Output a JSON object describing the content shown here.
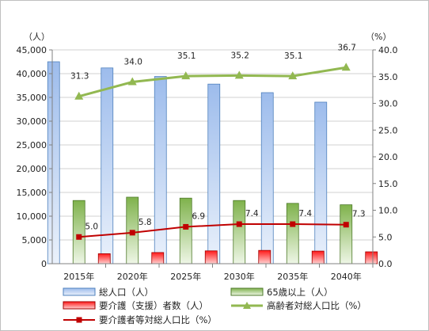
{
  "chart_data": {
    "type": "bar",
    "categories": [
      "2015年",
      "2020年",
      "2025年",
      "2030年",
      "2035年",
      "2040年"
    ],
    "left_axis": {
      "unit_label": "（人）",
      "range": [
        0,
        45000
      ],
      "ticks": [
        "0",
        "5,000",
        "10,000",
        "15,000",
        "20,000",
        "25,000",
        "30,000",
        "35,000",
        "40,000",
        "45,000"
      ]
    },
    "right_axis": {
      "unit_label": "（%）",
      "range": [
        0,
        40
      ],
      "ticks": [
        "0.0",
        "5.0",
        "10.0",
        "15.0",
        "20.0",
        "25.0",
        "30.0",
        "35.0",
        "40.0"
      ]
    },
    "grid": "horizontal",
    "legend_position": "bottom",
    "series": [
      {
        "name": "総人口（人）",
        "kind": "bar",
        "axis": "left",
        "color": "#4f81bd",
        "values": [
          42500,
          41200,
          39400,
          37800,
          36000,
          34000
        ]
      },
      {
        "name": "65歳以上（人）",
        "kind": "bar",
        "axis": "left",
        "color": "#76ae45",
        "values": [
          13300,
          14000,
          13800,
          13300,
          12700,
          12400
        ]
      },
      {
        "name": "要介護（支援）者数（人）",
        "kind": "bar",
        "axis": "left",
        "color": "#e02020",
        "values": [
          2100,
          2350,
          2700,
          2800,
          2650,
          2500
        ]
      },
      {
        "name": "高齢者対総人口比（%）",
        "kind": "line",
        "axis": "right",
        "color": "#92b851",
        "marker": "triangle",
        "values": [
          31.3,
          34.0,
          35.1,
          35.2,
          35.1,
          36.7
        ],
        "labels": [
          "31.3",
          "34.0",
          "35.1",
          "35.2",
          "35.1",
          "36.7"
        ]
      },
      {
        "name": "要介護者等対総人口比（%）",
        "kind": "line",
        "axis": "right",
        "color": "#c00000",
        "marker": "square",
        "values": [
          5.0,
          5.8,
          6.9,
          7.4,
          7.4,
          7.3
        ],
        "labels": [
          "5.0",
          "5.8",
          "6.9",
          "7.4",
          "7.4",
          "7.3"
        ]
      }
    ]
  }
}
